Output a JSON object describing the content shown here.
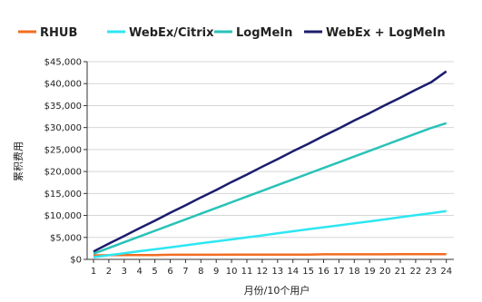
{
  "chart_data": {
    "type": "line",
    "title": "",
    "xlabel": "月份/10个用户",
    "ylabel": "累积费用",
    "x": [
      1,
      2,
      3,
      4,
      5,
      6,
      7,
      8,
      9,
      10,
      11,
      12,
      13,
      14,
      15,
      16,
      17,
      18,
      19,
      20,
      21,
      22,
      23,
      24
    ],
    "xticklabels": [
      "1",
      "2",
      "3",
      "4",
      "5",
      "6",
      "7",
      "8",
      "9",
      "10",
      "11",
      "12",
      "13",
      "14",
      "15",
      "16",
      "17",
      "18",
      "19",
      "20",
      "21",
      "22",
      "23",
      "24"
    ],
    "ylim": [
      0,
      45000
    ],
    "yticks": [
      0,
      5000,
      10000,
      15000,
      20000,
      25000,
      30000,
      35000,
      40000,
      45000
    ],
    "yticklabels": [
      "$0",
      "$5,000",
      "$10,000",
      "$15,000",
      "$20,000",
      "$25,000",
      "$30,000",
      "$35,000",
      "$40,000",
      "$45,000"
    ],
    "grid": "horizontal",
    "legend_position": "top",
    "series": [
      {
        "name": "RHUB",
        "color": "#f26d21",
        "values": [
          900,
          950,
          1000,
          1000,
          1000,
          1050,
          1050,
          1050,
          1050,
          1100,
          1100,
          1100,
          1100,
          1100,
          1100,
          1150,
          1150,
          1150,
          1150,
          1150,
          1200,
          1200,
          1200,
          1200
        ]
      },
      {
        "name": "WebEx/Citrix",
        "color": "#2ee6f2",
        "values": [
          500,
          950,
          1400,
          1850,
          2300,
          2750,
          3200,
          3650,
          4100,
          4550,
          5000,
          5450,
          5950,
          6400,
          6850,
          7300,
          7750,
          8200,
          8650,
          9100,
          9600,
          10050,
          10500,
          11000
        ]
      },
      {
        "name": "LogMeIn",
        "color": "#29c2b8",
        "values": [
          1300,
          2600,
          3900,
          5200,
          6500,
          7800,
          9100,
          10400,
          11700,
          13000,
          14300,
          15600,
          16900,
          18200,
          19500,
          20800,
          22100,
          23400,
          24700,
          26000,
          27300,
          28600,
          29900,
          31000
        ]
      },
      {
        "name": "WebEx + LogMeIn",
        "color": "#1c1c6e",
        "values": [
          1800,
          3600,
          5300,
          7100,
          8800,
          10600,
          12300,
          14100,
          15800,
          17600,
          19300,
          21100,
          22800,
          24600,
          26300,
          28100,
          29800,
          31600,
          33300,
          35100,
          36800,
          38600,
          40300,
          42800
        ]
      }
    ]
  }
}
